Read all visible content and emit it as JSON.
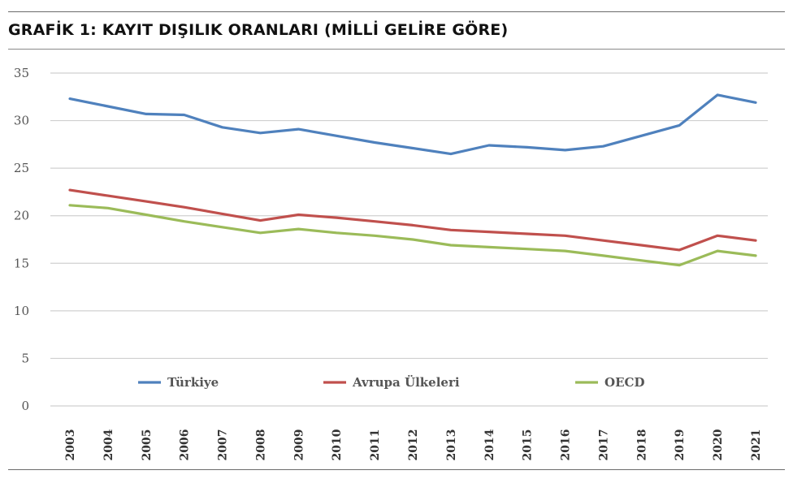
{
  "title": "GRAFİK 1: KAYIT DIŞILIK ORANLARI (MİLLİ GELİRE GÖRE)",
  "chart_data": {
    "type": "line",
    "title": "GRAFİK 1: KAYIT DIŞILIK ORANLARI (MİLLİ GELİRE GÖRE)",
    "xlabel": "",
    "ylabel": "",
    "x": [
      "2003",
      "2004",
      "2005",
      "2006",
      "2007",
      "2008",
      "2009",
      "2010",
      "2011",
      "2012",
      "2013",
      "2014",
      "2015",
      "2016",
      "2017",
      "2018",
      "2019",
      "2020",
      "2021"
    ],
    "ylim": [
      0,
      35
    ],
    "yticks": [
      0,
      5,
      10,
      15,
      20,
      25,
      30,
      35
    ],
    "grid": true,
    "legend_position": "bottom",
    "series": [
      {
        "name": "Türkiye",
        "color": "#4f81bd",
        "values": [
          32.3,
          31.5,
          30.7,
          30.6,
          29.3,
          28.7,
          29.1,
          28.4,
          27.7,
          27.1,
          26.5,
          27.4,
          27.2,
          26.9,
          27.3,
          28.4,
          29.5,
          32.7,
          31.9
        ]
      },
      {
        "name": "Avrupa Ülkeleri",
        "color": "#c0504d",
        "values": [
          22.7,
          22.1,
          21.5,
          20.9,
          20.2,
          19.5,
          20.1,
          19.8,
          19.4,
          19.0,
          18.5,
          18.3,
          18.1,
          17.9,
          17.4,
          16.9,
          16.4,
          17.9,
          17.4
        ]
      },
      {
        "name": "OECD",
        "color": "#9bbb59",
        "values": [
          21.1,
          20.8,
          20.1,
          19.4,
          18.8,
          18.2,
          18.6,
          18.2,
          17.9,
          17.5,
          16.9,
          16.7,
          16.5,
          16.3,
          15.8,
          15.3,
          14.8,
          16.3,
          15.8
        ]
      }
    ]
  }
}
